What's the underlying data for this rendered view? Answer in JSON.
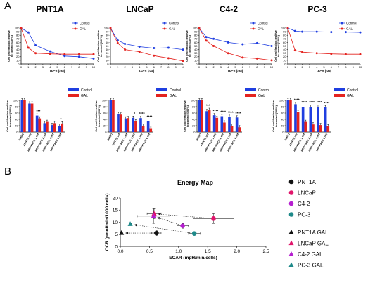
{
  "panel_labels": [
    "A",
    "B"
  ],
  "titles": [
    "PNT1A",
    "LNCaP",
    "C4-2",
    "PC-3"
  ],
  "colors": {
    "control": "#1f3ee0",
    "gal": "#e4231f",
    "dark": "#111111"
  },
  "chart_data": [
    {
      "type": "line",
      "panel": "PNT1A",
      "xlabel": "IACS (nM)",
      "ylabel": "Cell proliferation realtive to control (100%)",
      "xlim": [
        0,
        10
      ],
      "ylim": [
        0,
        100
      ],
      "xticks": [
        "0",
        "1",
        "2",
        "3",
        "4",
        "5",
        "6",
        "7",
        "8",
        "9",
        "10"
      ],
      "yticks": [
        "0",
        "10",
        "20",
        "30",
        "40",
        "50",
        "60",
        "70",
        "80",
        "90",
        "100"
      ],
      "reference_line": 50,
      "series": [
        {
          "name": "Control",
          "x": [
            0,
            1,
            2,
            4,
            6,
            8,
            10
          ],
          "y": [
            100,
            88,
            52,
            35,
            22,
            20,
            15
          ]
        },
        {
          "name": "GAL",
          "x": [
            0,
            1,
            2,
            4,
            6,
            8,
            10
          ],
          "y": [
            100,
            45,
            30,
            28,
            27,
            27,
            27
          ]
        }
      ]
    },
    {
      "type": "line",
      "panel": "LNCaP",
      "xlabel": "IACS (nM)",
      "ylabel": "Cell proliferation realtive to control (100%)",
      "xlim": [
        0,
        10
      ],
      "ylim": [
        0,
        100
      ],
      "xticks": [
        "0",
        "1",
        "2",
        "3",
        "4",
        "5",
        "6",
        "7",
        "8",
        "9",
        "10"
      ],
      "yticks": [
        "0",
        "10",
        "20",
        "30",
        "40",
        "50",
        "60",
        "70",
        "80",
        "90",
        "100"
      ],
      "reference_line": 50,
      "series": [
        {
          "name": "Control",
          "x": [
            0,
            1,
            2,
            4,
            6,
            8,
            10
          ],
          "y": [
            100,
            66,
            56,
            48,
            44,
            45,
            40
          ]
        },
        {
          "name": "GAL",
          "x": [
            0,
            1,
            2,
            4,
            6,
            8,
            10
          ],
          "y": [
            100,
            58,
            40,
            34,
            23,
            16,
            8
          ]
        }
      ]
    },
    {
      "type": "line",
      "panel": "C4-2",
      "xlabel": "IACS (nM)",
      "ylabel": "Cell proliferation realtive to control (100%)",
      "xlim": [
        0,
        10
      ],
      "ylim": [
        0,
        100
      ],
      "xticks": [
        "0",
        "1",
        "2",
        "3",
        "4",
        "5",
        "6",
        "7",
        "8",
        "9",
        "10"
      ],
      "yticks": [
        "0",
        "10",
        "20",
        "30",
        "40",
        "50",
        "60",
        "70",
        "80",
        "90",
        "100"
      ],
      "reference_line": 50,
      "series": [
        {
          "name": "Control",
          "x": [
            0,
            1,
            2,
            4,
            6,
            8,
            10
          ],
          "y": [
            100,
            75,
            70,
            60,
            55,
            58,
            50
          ]
        },
        {
          "name": "GAL",
          "x": [
            0,
            1,
            2,
            4,
            6,
            8,
            10
          ],
          "y": [
            100,
            65,
            50,
            30,
            18,
            15,
            10
          ]
        }
      ]
    },
    {
      "type": "line",
      "panel": "PC-3",
      "xlabel": "IACS (nM)",
      "ylabel": "Cell proliferation realtive to control (100%)",
      "xlim": [
        0,
        10
      ],
      "ylim": [
        0,
        100
      ],
      "xticks": [
        "0",
        "1",
        "2",
        "3",
        "4",
        "5",
        "6",
        "7",
        "8",
        "9",
        "10"
      ],
      "yticks": [
        "0",
        "10",
        "20",
        "30",
        "40",
        "50",
        "60",
        "70",
        "80",
        "90",
        "100"
      ],
      "reference_line": 50,
      "series": [
        {
          "name": "Control",
          "x": [
            0,
            1,
            2,
            4,
            6,
            8,
            10
          ],
          "y": [
            100,
            92,
            90,
            90,
            89,
            89,
            88
          ]
        },
        {
          "name": "GAL",
          "x": [
            0,
            1,
            2,
            4,
            6,
            8,
            10
          ],
          "y": [
            100,
            38,
            33,
            30,
            28,
            27,
            27
          ]
        }
      ]
    },
    {
      "type": "bar",
      "panel": "PNT1A",
      "ylabel": "Cell proliferation realtive to control (100%)",
      "ylim": [
        0,
        100
      ],
      "yticks": [
        "0",
        "20",
        "40",
        "60",
        "80",
        "100"
      ],
      "categories": [
        "DMSO",
        "ARN 25 uM",
        "ARN+IACS 1 nM",
        "ARN+IACS 2 nM",
        "ARN+IACS 4 nM",
        "ARN+IACS 6 nM"
      ],
      "series": [
        {
          "name": "Control",
          "values": [
            100,
            90,
            52,
            28,
            22,
            20
          ]
        },
        {
          "name": "GAL",
          "values": [
            100,
            90,
            43,
            32,
            28,
            27
          ]
        }
      ],
      "significance": [
        "",
        "",
        "***",
        "",
        "",
        "*"
      ]
    },
    {
      "type": "bar",
      "panel": "LNCaP",
      "ylabel": "Cell proliferation realtive to control (100%)",
      "ylim": [
        0,
        100
      ],
      "yticks": [
        "0",
        "20",
        "40",
        "60",
        "80",
        "100"
      ],
      "categories": [
        "DMSO",
        "ARN 25 uM",
        "ARN+IACS 1 nM",
        "ARN+IACS 2 nM",
        "ARN+IACS 4 nM",
        "ARN+IACS 6 nM"
      ],
      "series": [
        {
          "name": "Control",
          "values": [
            100,
            56,
            43,
            45,
            44,
            35
          ]
        },
        {
          "name": "GAL",
          "values": [
            100,
            55,
            44,
            34,
            20,
            10
          ]
        }
      ],
      "significance": [
        "",
        "",
        "",
        "*",
        "****",
        "****"
      ]
    },
    {
      "type": "bar",
      "panel": "C4-2",
      "ylabel": "Cell proliferation realtive to control (100%)",
      "ylim": [
        0,
        100
      ],
      "yticks": [
        "0",
        "20",
        "40",
        "60",
        "80",
        "100"
      ],
      "categories": [
        "DMSO",
        "ARN 25 uM",
        "ARN+IACS 1 nM",
        "ARN+IACS 2 nM",
        "ARN+IACS 4 nM",
        "ARN+IACS 6 nM"
      ],
      "series": [
        {
          "name": "Control",
          "values": [
            100,
            66,
            53,
            50,
            48,
            46
          ]
        },
        {
          "name": "GAL",
          "values": [
            100,
            70,
            45,
            30,
            20,
            15
          ]
        }
      ],
      "significance": [
        "",
        "***",
        "****",
        "****",
        "****",
        "****"
      ]
    },
    {
      "type": "bar",
      "panel": "PC-3",
      "ylabel": "Cell proliferation realtive to control (100%)",
      "ylim": [
        0,
        100
      ],
      "yticks": [
        "0",
        "20",
        "40",
        "60",
        "80",
        "100"
      ],
      "categories": [
        "DMSO",
        "ARN 25 uM",
        "ARN+IACS 1 nM",
        "ARN+IACS 2 nM",
        "ARN+IACS 4 nM",
        "ARN+IACS 6 nM"
      ],
      "series": [
        {
          "name": "Control",
          "values": [
            100,
            88,
            80,
            80,
            80,
            78
          ]
        },
        {
          "name": "GAL",
          "values": [
            100,
            63,
            32,
            24,
            22,
            18
          ]
        }
      ],
      "significance": [
        "",
        "****",
        "****",
        "****",
        "****",
        "****"
      ]
    },
    {
      "type": "scatter",
      "panel": "Energy Map",
      "title": "Energy Map",
      "xlabel": "ECAR (mpH/min/cells)",
      "ylabel": "OCR (pmol/min/1000 cells)",
      "xlim": [
        0,
        2.5
      ],
      "ylim": [
        0,
        20
      ],
      "xticks": [
        "0.0",
        "0.5",
        "1.0",
        "1.5",
        "2.0",
        "2.5"
      ],
      "yticks": [
        "0",
        "5",
        "10",
        "15",
        "20"
      ],
      "series": [
        {
          "name": "PNT1A",
          "marker": "circle",
          "color": "#111111",
          "x": 0.62,
          "y": 5.5,
          "xerr": 0.08,
          "yerr": 1.0
        },
        {
          "name": "LNCaP",
          "marker": "circle",
          "color": "#e0156b",
          "x": 1.6,
          "y": 11.5,
          "xerr": 0.35,
          "yerr": 2.0
        },
        {
          "name": "C4-2",
          "marker": "circle",
          "color": "#b51fcf",
          "x": 1.07,
          "y": 8.5,
          "xerr": 0.1,
          "yerr": 1.0
        },
        {
          "name": "PC-3",
          "marker": "circle",
          "color": "#1f8a8a",
          "x": 1.27,
          "y": 5.3,
          "xerr": 0.1,
          "yerr": 0.4
        },
        {
          "name": "PNT1A GAL",
          "marker": "triangle",
          "color": "#111111",
          "x": 0.02,
          "y": 5.5,
          "xerr": 0.02,
          "yerr": 0.4
        },
        {
          "name": "LNCaP GAL",
          "marker": "triangle",
          "color": "#e0156b",
          "x": 0.58,
          "y": 13.5,
          "xerr": 0.12,
          "yerr": 2.0
        },
        {
          "name": "C4-2 GAL",
          "marker": "triangle",
          "color": "#b51fcf",
          "x": 0.57,
          "y": 12.5,
          "xerr": 0.28,
          "yerr": 3.0
        },
        {
          "name": "PC-3 GAL",
          "marker": "triangle",
          "color": "#1f8a8a",
          "x": 0.17,
          "y": 9.2,
          "xerr": 0.02,
          "yerr": 0.4
        }
      ],
      "arrows_from_to": [
        [
          "PNT1A",
          "PNT1A GAL"
        ],
        [
          "LNCaP",
          "LNCaP GAL"
        ],
        [
          "C4-2",
          "C4-2 GAL"
        ],
        [
          "PC-3",
          "PC-3 GAL"
        ]
      ]
    }
  ]
}
